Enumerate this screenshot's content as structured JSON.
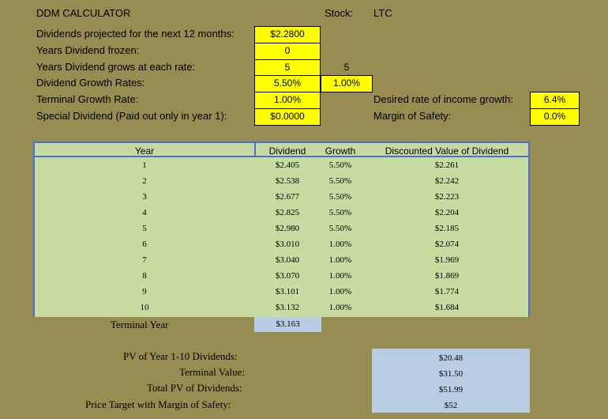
{
  "header": {
    "title": "DDM CALCULATOR",
    "stock_label": "Stock:",
    "stock_value": "LTC"
  },
  "inputs": {
    "dividends_label": "Dividends projected for the next 12 months:",
    "dividends_value": "$2.2800",
    "frozen_label": "Years Dividend frozen:",
    "frozen_value": "0",
    "years_grows_label": "Years Dividend grows at each rate:",
    "years_grows_value_1": "5",
    "years_grows_value_2": "5",
    "growth_rates_label": "Dividend Growth Rates:",
    "growth_rate_1": "5.50%",
    "growth_rate_2": "1.00%",
    "terminal_growth_label": "Terminal Growth Rate:",
    "terminal_growth_value": "1.00%",
    "special_dividend_label": "Special Dividend (Paid out only in year 1):",
    "special_dividend_value": "$0.0000",
    "desired_rate_label": "Desired rate of income growth:",
    "desired_rate_value": "6.4%",
    "margin_label": "Margin of Safety:",
    "margin_value": "0.0%"
  },
  "table": {
    "headers": [
      "Year",
      "Dividend",
      "Growth",
      "Discounted Value of Dividend"
    ],
    "rows": [
      {
        "year": "1",
        "dividend": "$2.405",
        "growth": "5.50%",
        "discounted": "$2.261"
      },
      {
        "year": "2",
        "dividend": "$2.538",
        "growth": "5.50%",
        "discounted": "$2.242"
      },
      {
        "year": "3",
        "dividend": "$2.677",
        "growth": "5.50%",
        "discounted": "$2.223"
      },
      {
        "year": "4",
        "dividend": "$2.825",
        "growth": "5.50%",
        "discounted": "$2.204"
      },
      {
        "year": "5",
        "dividend": "$2.980",
        "growth": "5.50%",
        "discounted": "$2.185"
      },
      {
        "year": "6",
        "dividend": "$3.010",
        "growth": "1.00%",
        "discounted": "$2.074"
      },
      {
        "year": "7",
        "dividend": "$3.040",
        "growth": "1.00%",
        "discounted": "$1.969"
      },
      {
        "year": "8",
        "dividend": "$3.070",
        "growth": "1.00%",
        "discounted": "$1.869"
      },
      {
        "year": "9",
        "dividend": "$3.101",
        "growth": "1.00%",
        "discounted": "$1.774"
      },
      {
        "year": "10",
        "dividend": "$3.132",
        "growth": "1.00%",
        "discounted": "$1.684"
      }
    ],
    "terminal_label": "Terminal Year",
    "terminal_value": "$3.163"
  },
  "summary": {
    "pv_label": "PV of Year 1-10 Dividends:",
    "pv_value": "$20.48",
    "terminal_label": "Terminal Value:",
    "terminal_value": "$31.50",
    "total_label": "Total PV of Dividends:",
    "total_value": "$51.99",
    "target_label": "Price Target with Margin of Safety:",
    "target_value": "$52"
  }
}
